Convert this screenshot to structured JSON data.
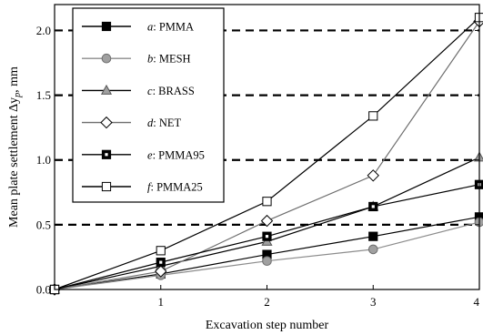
{
  "chart_data": {
    "type": "line",
    "xlabel": "Excavation step number",
    "ylabel": "Mean plate settlement Δy",
    "ylabel_subscript": "p",
    "ylabel_unit": ", mm",
    "xlim": [
      0,
      4
    ],
    "ylim": [
      0,
      2.2
    ],
    "xticks": [
      {
        "value": 0,
        "label": "0"
      },
      {
        "value": 1,
        "label": "1"
      },
      {
        "value": 2,
        "label": "2"
      },
      {
        "value": 3,
        "label": "3"
      },
      {
        "value": 4,
        "label": "4"
      }
    ],
    "yticks": [
      {
        "value": 0,
        "label": "0.0"
      },
      {
        "value": 0.5,
        "label": "0.5"
      },
      {
        "value": 1,
        "label": "1.0"
      },
      {
        "value": 1.5,
        "label": "1.5"
      },
      {
        "value": 2,
        "label": "2.0"
      }
    ],
    "gridlines": {
      "axis": "y",
      "style": "dashed",
      "values": [
        0.5,
        1.0,
        1.5,
        2.0
      ]
    },
    "legend_position": "top-left",
    "x": [
      0,
      1,
      2,
      3,
      4
    ],
    "series": [
      {
        "key": "a",
        "label": "PMMA",
        "marker": "square-filled",
        "color": "#000000",
        "values": [
          0,
          0.12,
          0.27,
          0.41,
          0.56
        ]
      },
      {
        "key": "b",
        "label": "MESH",
        "marker": "circle-gray",
        "color": "#8c8c8c",
        "values": [
          0,
          0.11,
          0.22,
          0.31,
          0.52
        ]
      },
      {
        "key": "c",
        "label": "BRASS",
        "marker": "triangle-gray",
        "color": "#000000",
        "values": [
          0,
          0.18,
          0.37,
          0.64,
          1.02
        ]
      },
      {
        "key": "d",
        "label": "NET",
        "marker": "diamond-open",
        "color": "#6e6e6e",
        "values": [
          0,
          0.14,
          0.53,
          0.88,
          2.07
        ]
      },
      {
        "key": "e",
        "label": "PMMA95",
        "marker": "square-dot",
        "color": "#000000",
        "values": [
          0,
          0.21,
          0.41,
          0.64,
          0.81
        ]
      },
      {
        "key": "f",
        "label": "PMMA25",
        "marker": "square-open",
        "color": "#000000",
        "values": [
          0,
          0.3,
          0.68,
          1.34,
          2.1
        ]
      }
    ],
    "colors": {
      "gray_fill": "#a0a0a0",
      "axis": "#000000",
      "background": "#ffffff"
    }
  }
}
